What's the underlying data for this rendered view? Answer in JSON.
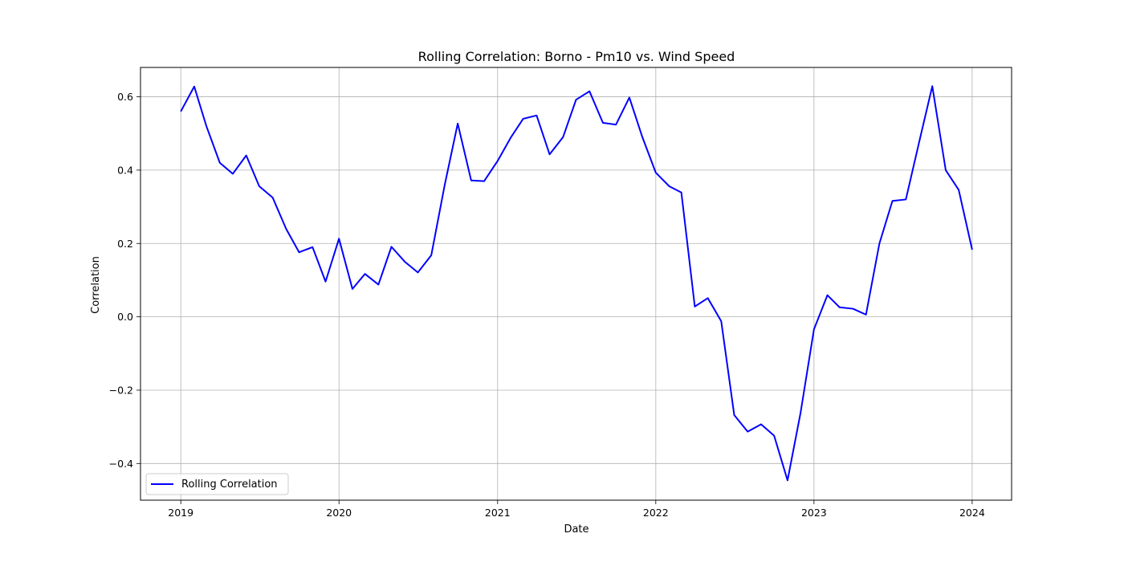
{
  "chart_data": {
    "type": "line",
    "title": "Rolling Correlation: Borno - Pm10 vs. Wind Speed",
    "xlabel": "Date",
    "ylabel": "Correlation",
    "xlim": [
      "2018-09-30",
      "2024-04-01"
    ],
    "ylim": [
      -0.5,
      0.68
    ],
    "x_ticks": [
      "2019",
      "2020",
      "2021",
      "2022",
      "2023",
      "2024"
    ],
    "y_ticks": [
      -0.4,
      -0.2,
      0.0,
      0.2,
      0.4,
      0.6
    ],
    "grid": true,
    "legend_position": "lower-left",
    "series": [
      {
        "name": "Rolling Correlation",
        "color": "#0000ff",
        "x": [
          "2019-01",
          "2019-02",
          "2019-03",
          "2019-04",
          "2019-05",
          "2019-06",
          "2019-07",
          "2019-08",
          "2019-09",
          "2019-10",
          "2019-11",
          "2019-12",
          "2020-01",
          "2020-02",
          "2020-03",
          "2020-04",
          "2020-05",
          "2020-06",
          "2020-07",
          "2020-08",
          "2020-09",
          "2020-10",
          "2020-11",
          "2020-12",
          "2021-01",
          "2021-02",
          "2021-03",
          "2021-04",
          "2021-05",
          "2021-06",
          "2021-07",
          "2021-08",
          "2021-09",
          "2021-10",
          "2021-11",
          "2021-12",
          "2022-01",
          "2022-02",
          "2022-03",
          "2022-04",
          "2022-05",
          "2022-06",
          "2022-07",
          "2022-08",
          "2022-09",
          "2022-10",
          "2022-11",
          "2022-12",
          "2023-01",
          "2023-02",
          "2023-03",
          "2023-04",
          "2023-05",
          "2023-06",
          "2023-07",
          "2023-08",
          "2023-09",
          "2023-10",
          "2023-11",
          "2023-12",
          "2024-01"
        ],
        "values": [
          0.56,
          0.628,
          0.52,
          0.42,
          0.39,
          0.44,
          0.356,
          0.325,
          0.24,
          0.176,
          0.19,
          0.096,
          0.213,
          0.076,
          0.117,
          0.088,
          0.191,
          0.15,
          0.121,
          0.168,
          0.36,
          0.527,
          0.372,
          0.37,
          0.425,
          0.49,
          0.54,
          0.549,
          0.443,
          0.49,
          0.592,
          0.615,
          0.529,
          0.524,
          0.598,
          0.49,
          0.393,
          0.356,
          0.339,
          0.028,
          0.051,
          -0.012,
          -0.268,
          -0.313,
          -0.293,
          -0.324,
          -0.446,
          -0.262,
          -0.034,
          0.059,
          0.026,
          0.022,
          0.006,
          0.2,
          0.316,
          0.32,
          0.478,
          0.629,
          0.4,
          0.346,
          0.183
        ]
      }
    ]
  }
}
